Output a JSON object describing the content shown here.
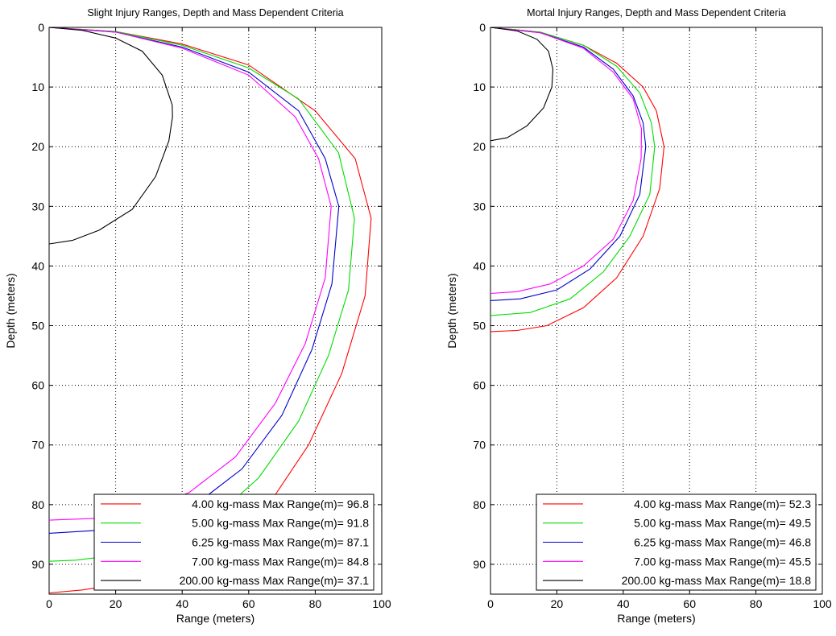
{
  "chart_data": [
    {
      "type": "line",
      "title": "Slight Injury Ranges, Depth and Mass Dependent Criteria",
      "xlabel": "Range (meters)",
      "ylabel": "Depth (meters)",
      "xlim": [
        0,
        100
      ],
      "ylim": [
        0,
        95
      ],
      "y_reversed": true,
      "grid": true,
      "grid_style": "dotted",
      "xticks": [
        0,
        20,
        40,
        60,
        80,
        100
      ],
      "yticks": [
        0,
        10,
        20,
        30,
        40,
        50,
        60,
        70,
        80,
        90
      ],
      "legend_position": "bottom-right",
      "series": [
        {
          "name": "4.00 kg-mass Max Range(m)= 96.8",
          "color": "#ff0000",
          "points": [
            [
              0,
              0
            ],
            [
              20,
              0.7
            ],
            [
              40,
              2.8
            ],
            [
              60,
              6.3
            ],
            [
              80,
              14
            ],
            [
              92,
              22
            ],
            [
              96.8,
              32
            ],
            [
              95,
              45
            ],
            [
              88,
              58
            ],
            [
              78,
              70
            ],
            [
              66,
              80
            ],
            [
              54,
              86.5
            ],
            [
              40,
              90.5
            ],
            [
              25,
              93
            ],
            [
              10,
              94.3
            ],
            [
              0,
              94.8
            ]
          ]
        },
        {
          "name": "5.00 kg-mass Max Range(m)= 91.8",
          "color": "#00dd00",
          "points": [
            [
              0,
              0
            ],
            [
              20,
              0.7
            ],
            [
              40,
              3
            ],
            [
              60,
              6.8
            ],
            [
              75,
              12
            ],
            [
              87,
              21
            ],
            [
              91.8,
              32
            ],
            [
              90,
              44
            ],
            [
              84,
              55
            ],
            [
              75,
              66
            ],
            [
              63,
              75.5
            ],
            [
              50,
              82
            ],
            [
              35,
              86.5
            ],
            [
              20,
              88.5
            ],
            [
              8,
              89.3
            ],
            [
              0,
              89.5
            ]
          ]
        },
        {
          "name": "6.25 kg-mass Max Range(m)= 87.1",
          "color": "#0000cc",
          "points": [
            [
              0,
              0
            ],
            [
              20,
              0.8
            ],
            [
              40,
              3.3
            ],
            [
              60,
              7.5
            ],
            [
              75,
              14
            ],
            [
              83,
              22
            ],
            [
              87.1,
              30
            ],
            [
              85,
              43
            ],
            [
              79,
              54
            ],
            [
              70,
              65
            ],
            [
              58,
              74
            ],
            [
              44,
              80
            ],
            [
              30,
              83
            ],
            [
              15,
              84.3
            ],
            [
              0,
              84.8
            ]
          ]
        },
        {
          "name": "7.00 kg-mass Max Range(m)= 84.8",
          "color": "#ff00ff",
          "points": [
            [
              0,
              0
            ],
            [
              20,
              0.8
            ],
            [
              40,
              3.5
            ],
            [
              60,
              8
            ],
            [
              74,
              15
            ],
            [
              81,
              22
            ],
            [
              84.8,
              30
            ],
            [
              83,
              42
            ],
            [
              77,
              53
            ],
            [
              68,
              63
            ],
            [
              56,
              72
            ],
            [
              42,
              78
            ],
            [
              28,
              81
            ],
            [
              14,
              82.3
            ],
            [
              0,
              82.6
            ]
          ]
        },
        {
          "name": "200.00 kg-mass Max Range(m)= 37.1",
          "color": "#000000",
          "points": [
            [
              0,
              0
            ],
            [
              10,
              0.5
            ],
            [
              20,
              1.8
            ],
            [
              28,
              4
            ],
            [
              34,
              8
            ],
            [
              37,
              13
            ],
            [
              37.1,
              15
            ],
            [
              36,
              19
            ],
            [
              32,
              25
            ],
            [
              25,
              30.5
            ],
            [
              15,
              34
            ],
            [
              7,
              35.7
            ],
            [
              0,
              36.3
            ]
          ]
        }
      ]
    },
    {
      "type": "line",
      "title": "Mortal Injury Ranges, Depth and Mass Dependent Criteria",
      "xlabel": "Range (meters)",
      "ylabel": "Depth (meters)",
      "xlim": [
        0,
        100
      ],
      "ylim": [
        0,
        95
      ],
      "y_reversed": true,
      "grid": true,
      "grid_style": "dotted",
      "xticks": [
        0,
        20,
        40,
        60,
        80,
        100
      ],
      "yticks": [
        0,
        10,
        20,
        30,
        40,
        50,
        60,
        70,
        80,
        90
      ],
      "legend_position": "bottom-right",
      "series": [
        {
          "name": "4.00 kg-mass Max Range(m)= 52.3",
          "color": "#ff0000",
          "points": [
            [
              0,
              0
            ],
            [
              15,
              0.8
            ],
            [
              28,
              3
            ],
            [
              38,
              6
            ],
            [
              46,
              10
            ],
            [
              50,
              14
            ],
            [
              52.3,
              20
            ],
            [
              51,
              27
            ],
            [
              46,
              35
            ],
            [
              38,
              42
            ],
            [
              28,
              47
            ],
            [
              17,
              50
            ],
            [
              8,
              50.8
            ],
            [
              0,
              51
            ]
          ]
        },
        {
          "name": "5.00 kg-mass Max Range(m)= 49.5",
          "color": "#00dd00",
          "points": [
            [
              0,
              0
            ],
            [
              15,
              0.8
            ],
            [
              28,
              3
            ],
            [
              38,
              6.5
            ],
            [
              45,
              11
            ],
            [
              48.5,
              16
            ],
            [
              49.5,
              20
            ],
            [
              48,
              28
            ],
            [
              42,
              35
            ],
            [
              34,
              41
            ],
            [
              24,
              45.5
            ],
            [
              12,
              47.8
            ],
            [
              0,
              48.3
            ]
          ]
        },
        {
          "name": "6.25 kg-mass Max Range(m)= 46.8",
          "color": "#0000cc",
          "points": [
            [
              0,
              0
            ],
            [
              15,
              0.9
            ],
            [
              28,
              3.3
            ],
            [
              37,
              7
            ],
            [
              43,
              11.5
            ],
            [
              46,
              16
            ],
            [
              46.8,
              20
            ],
            [
              45,
              28
            ],
            [
              39,
              35
            ],
            [
              30,
              40.5
            ],
            [
              20,
              44
            ],
            [
              9,
              45.5
            ],
            [
              0,
              45.8
            ]
          ]
        },
        {
          "name": "7.00 kg-mass Max Range(m)= 45.5",
          "color": "#ff00ff",
          "points": [
            [
              0,
              0
            ],
            [
              15,
              0.9
            ],
            [
              28,
              3.5
            ],
            [
              37,
              7.5
            ],
            [
              43,
              12
            ],
            [
              45.5,
              17
            ],
            [
              45.4,
              22
            ],
            [
              43,
              29
            ],
            [
              37,
              35.5
            ],
            [
              28,
              40
            ],
            [
              18,
              43
            ],
            [
              8,
              44.3
            ],
            [
              0,
              44.6
            ]
          ]
        },
        {
          "name": "200.00 kg-mass Max Range(m)= 18.8",
          "color": "#000000",
          "points": [
            [
              0,
              0
            ],
            [
              8,
              0.6
            ],
            [
              14,
              2
            ],
            [
              17.5,
              4
            ],
            [
              18.8,
              7
            ],
            [
              18.5,
              10
            ],
            [
              16,
              13.5
            ],
            [
              11,
              16.5
            ],
            [
              5,
              18.5
            ],
            [
              0,
              19
            ]
          ]
        }
      ]
    }
  ]
}
